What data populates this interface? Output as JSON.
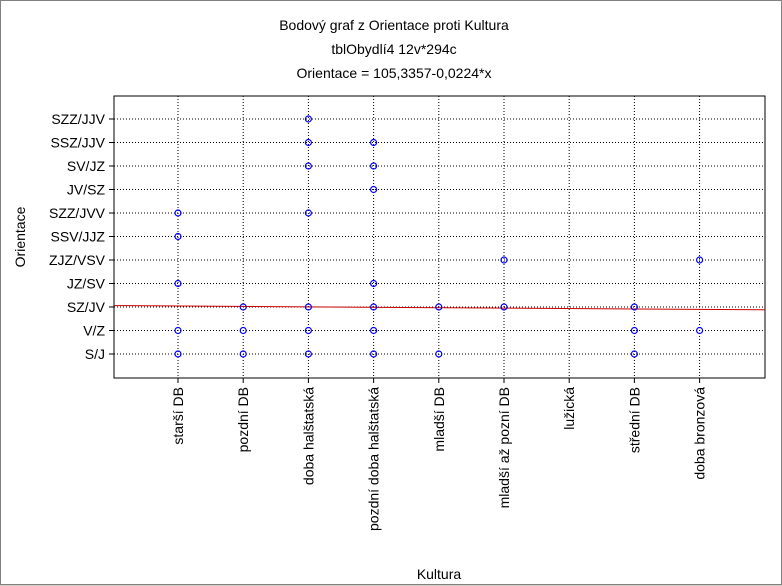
{
  "chart_data": {
    "type": "scatter",
    "title": "Bodový graf z Orientace proti Kultura",
    "subtitle": "tblObydlí4 12v*294c",
    "equation": "Orientace = 105,3357-0,0224*x",
    "xlabel": "Kultura",
    "ylabel": "Orientace",
    "categories": [
      "starší DB",
      "pozdní DB",
      "doba halštatská",
      "pozdní doba halštatská",
      "mladší DB",
      "mladší až pozní DB",
      "lužická",
      "střední DB",
      "doba bronzová"
    ],
    "y_categories": [
      "S/J",
      "V/Z",
      "SZ/JV",
      "JZ/SV",
      "ZJZ/VSV",
      "SSV/JJZ",
      "SZZ/JVV",
      "JV/SZ",
      "SV/JZ",
      "SSZ/JJV",
      "SZZ/JJV"
    ],
    "points": [
      {
        "x": "starší DB",
        "y": "S/J"
      },
      {
        "x": "starší DB",
        "y": "V/Z"
      },
      {
        "x": "starší DB",
        "y": "JZ/SV"
      },
      {
        "x": "starší DB",
        "y": "SSV/JJZ"
      },
      {
        "x": "starší DB",
        "y": "SZZ/JVV"
      },
      {
        "x": "pozdní DB",
        "y": "S/J"
      },
      {
        "x": "pozdní DB",
        "y": "V/Z"
      },
      {
        "x": "pozdní DB",
        "y": "SZ/JV"
      },
      {
        "x": "doba halštatská",
        "y": "S/J"
      },
      {
        "x": "doba halštatská",
        "y": "V/Z"
      },
      {
        "x": "doba halštatská",
        "y": "SZ/JV"
      },
      {
        "x": "doba halštatská",
        "y": "SZZ/JVV"
      },
      {
        "x": "doba halštatská",
        "y": "SV/JZ"
      },
      {
        "x": "doba halštatská",
        "y": "SSZ/JJV"
      },
      {
        "x": "doba halštatská",
        "y": "SZZ/JJV"
      },
      {
        "x": "pozdní doba halštatská",
        "y": "S/J"
      },
      {
        "x": "pozdní doba halštatská",
        "y": "V/Z"
      },
      {
        "x": "pozdní doba halštatská",
        "y": "SZ/JV"
      },
      {
        "x": "pozdní doba halštatská",
        "y": "JZ/SV"
      },
      {
        "x": "pozdní doba halštatská",
        "y": "JV/SZ"
      },
      {
        "x": "pozdní doba halštatská",
        "y": "SV/JZ"
      },
      {
        "x": "pozdní doba halštatská",
        "y": "SSZ/JJV"
      },
      {
        "x": "mladší DB",
        "y": "S/J"
      },
      {
        "x": "mladší DB",
        "y": "SZ/JV"
      },
      {
        "x": "mladší až pozní DB",
        "y": "SZ/JV"
      },
      {
        "x": "mladší až pozní DB",
        "y": "ZJZ/VSV"
      },
      {
        "x": "střední DB",
        "y": "S/J"
      },
      {
        "x": "střední DB",
        "y": "V/Z"
      },
      {
        "x": "střední DB",
        "y": "SZ/JV"
      },
      {
        "x": "doba bronzová",
        "y": "V/Z"
      },
      {
        "x": "doba bronzová",
        "y": "ZJZ/VSV"
      }
    ],
    "fit_line": {
      "y_start": 2.06,
      "y_end": 1.88
    },
    "grid": true,
    "colors": {
      "marker": "#0000ff",
      "fit_line": "#cc0000",
      "grid": "#000000",
      "frame": "#000000"
    }
  }
}
